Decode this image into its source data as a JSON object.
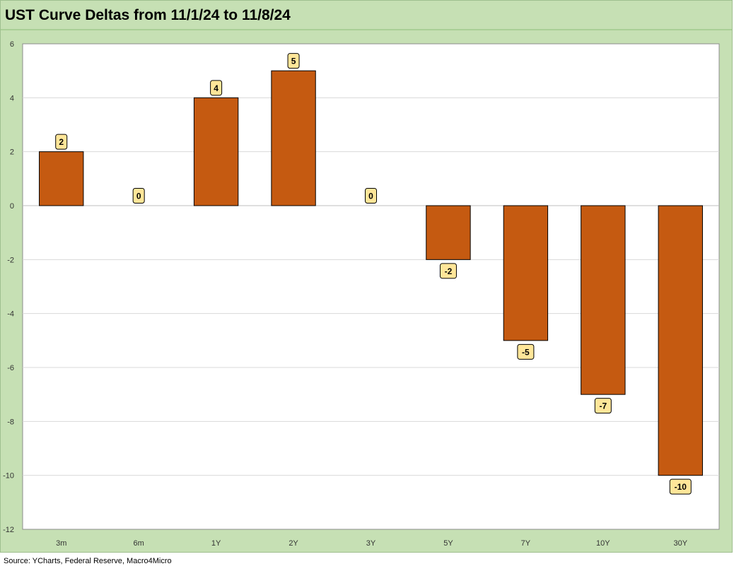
{
  "title": "UST Curve Deltas from 11/1/24 to 11/8/24",
  "source": "Source: YCharts, Federal Reserve, Macro4Micro",
  "colors": {
    "bar": "#c55a11",
    "bar_outline": "#000000",
    "frame": "#c6e0b4",
    "label_fill": "#ffe699",
    "gridline": "#d9d9d9"
  },
  "chart_data": {
    "type": "bar",
    "categories": [
      "3m",
      "6m",
      "1Y",
      "2Y",
      "3Y",
      "5Y",
      "7Y",
      "10Y",
      "30Y"
    ],
    "values": [
      2,
      0,
      4,
      5,
      0,
      -2,
      -5,
      -7,
      -10
    ],
    "data_labels": [
      "2",
      "0",
      "4",
      "5",
      "0",
      "-2",
      "-5",
      "-7",
      "-10"
    ],
    "ylim": [
      -12,
      6
    ],
    "yticks": [
      "6",
      "4",
      "2",
      "0",
      "-2",
      "-4",
      "-6",
      "-8",
      "-10",
      "-12"
    ],
    "ytick_values": [
      6,
      4,
      2,
      0,
      -2,
      -4,
      -6,
      -8,
      -10,
      -12
    ],
    "grid": true,
    "legend": "none",
    "title": "UST Curve Deltas from 11/1/24 to 11/8/24",
    "xlabel": "",
    "ylabel": ""
  }
}
